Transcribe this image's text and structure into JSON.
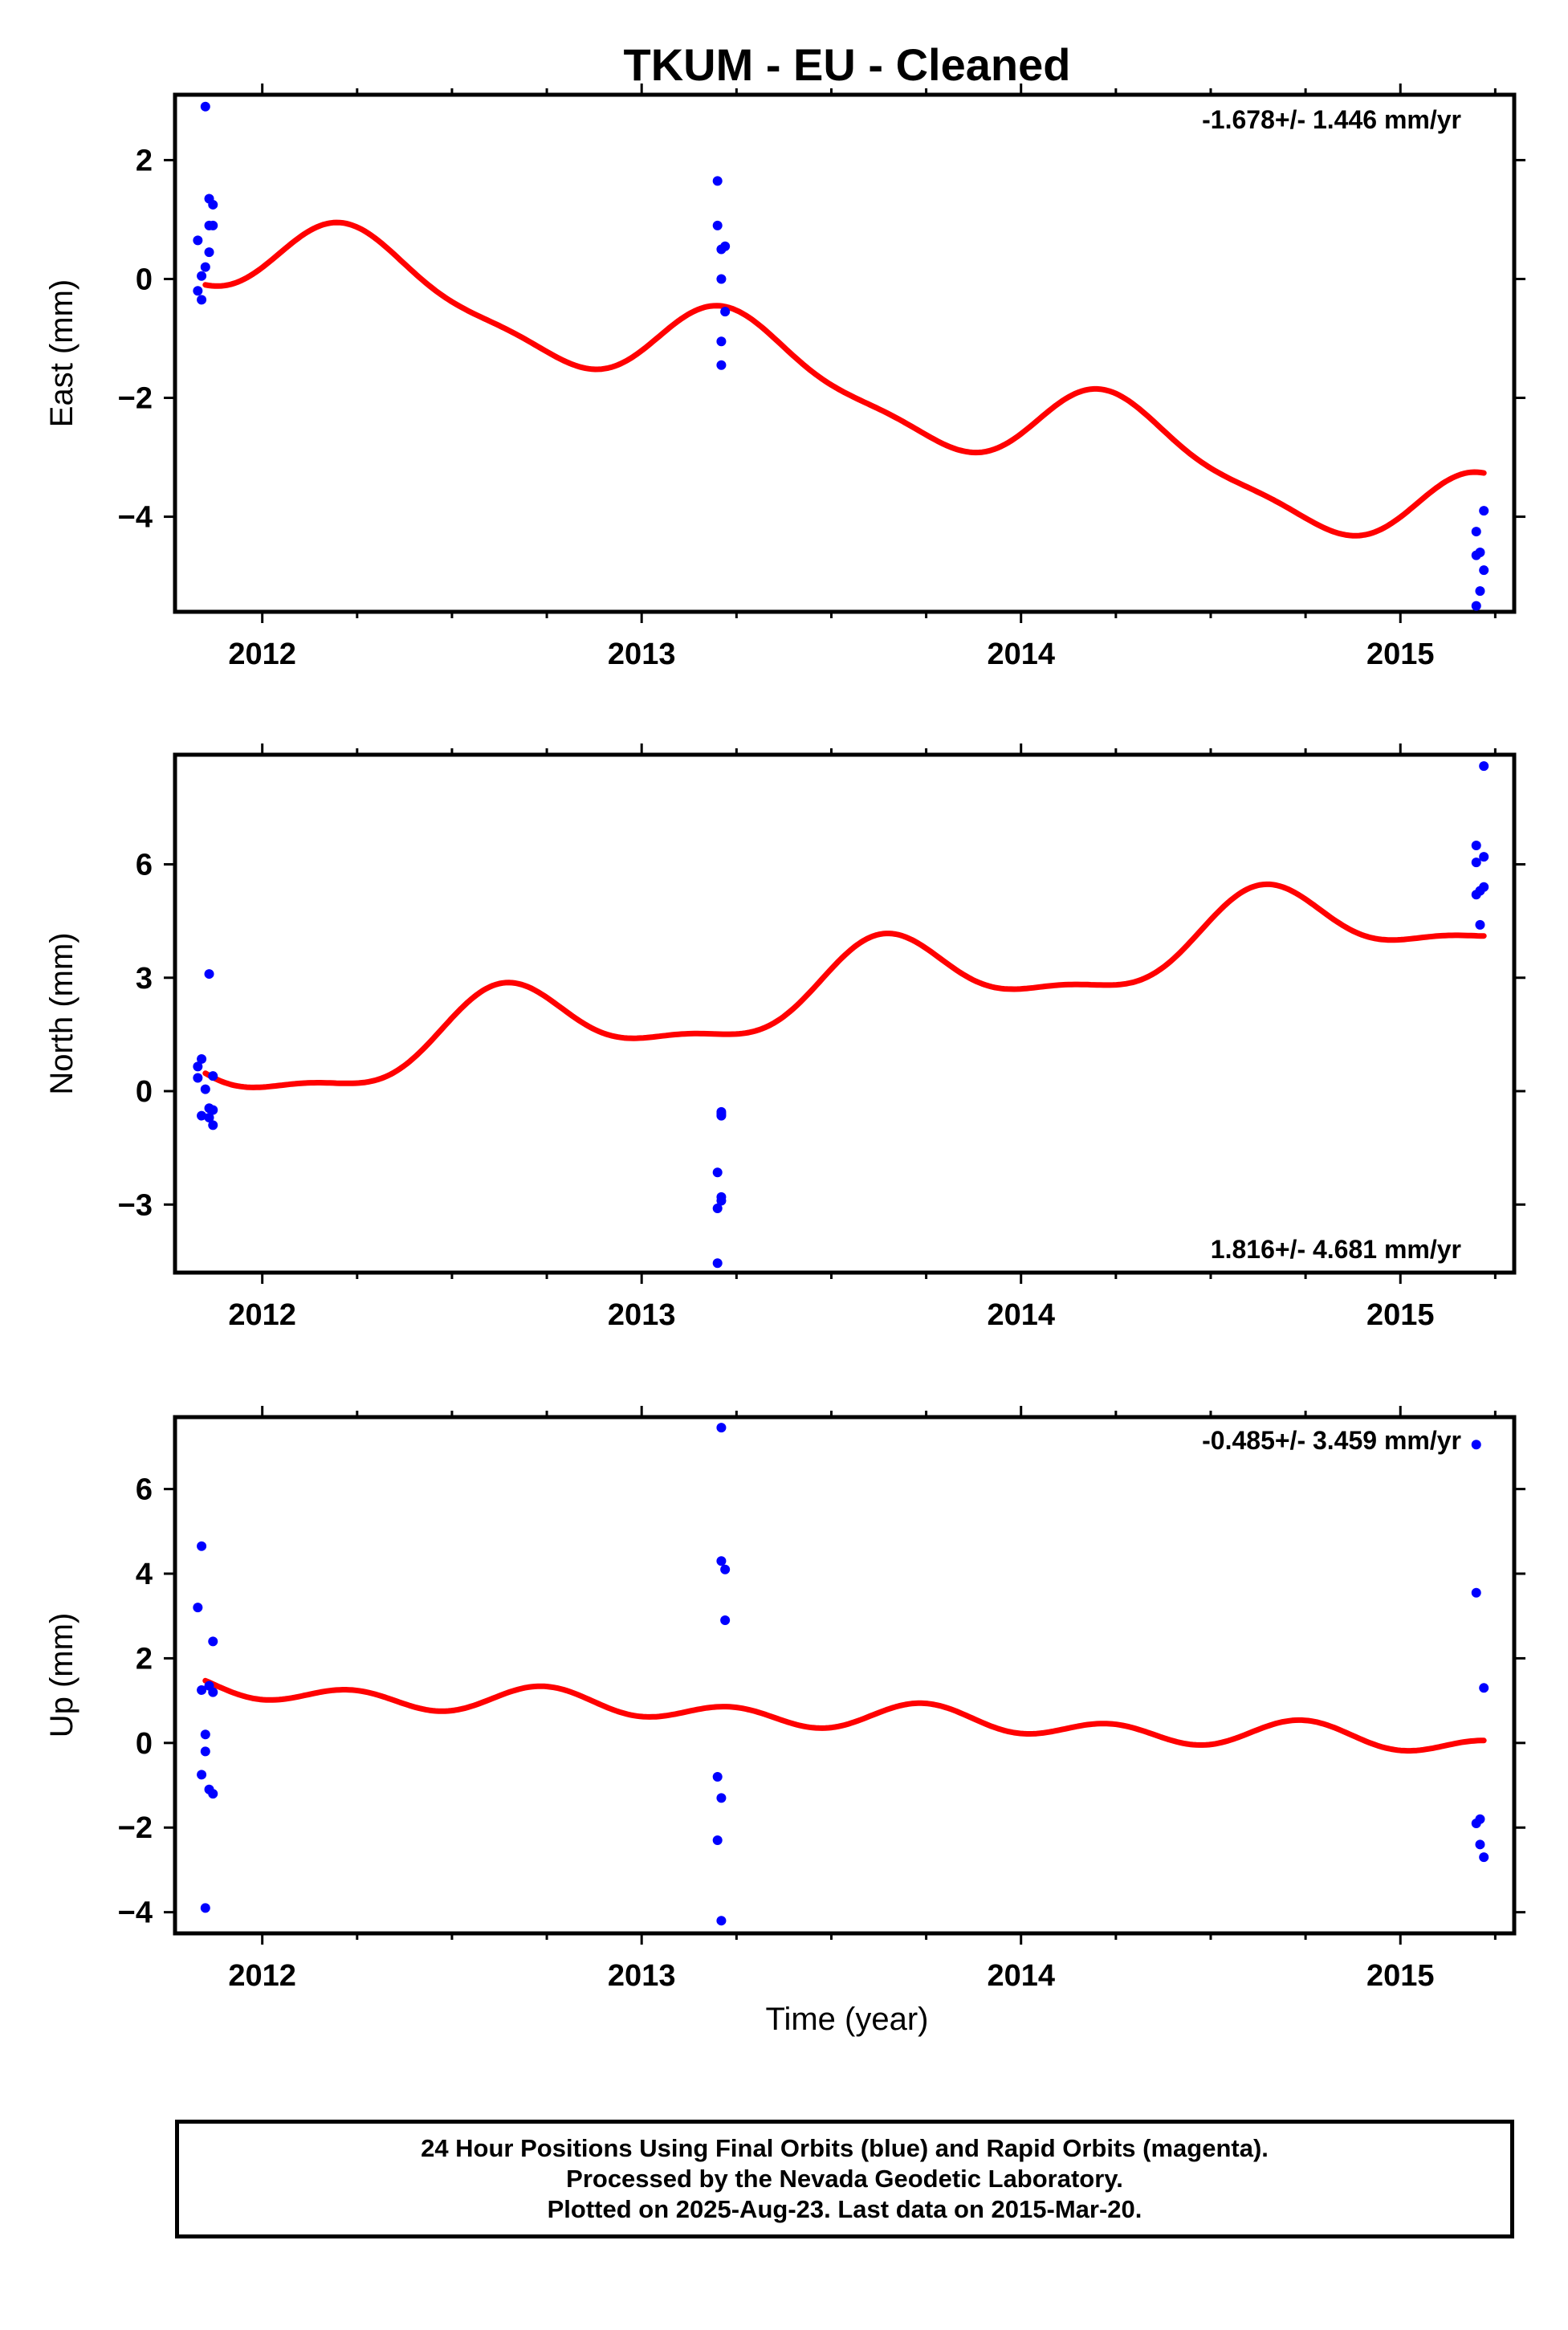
{
  "title": "TKUM  - EU - Cleaned",
  "xlabel": "Time (year)",
  "footer": {
    "line1": "24 Hour Positions Using Final Orbits (blue) and Rapid Orbits (magenta).",
    "line2": "Processed by the Nevada Geodetic Laboratory.",
    "line3": "Plotted on 2025-Aug-23. Last data on 2015-Mar-20."
  },
  "colors": {
    "points": "#0000ff",
    "fit": "#ff0000",
    "frame": "#000000"
  },
  "chart_data": [
    {
      "type": "scatter",
      "ylabel": "East (mm)",
      "rate_label": "-1.678+/- 1.446 mm/yr",
      "xlim": [
        2011.77,
        2015.3
      ],
      "ylim": [
        -5.6,
        3.1
      ],
      "xticks": [
        2012,
        2013,
        2014,
        2015
      ],
      "yticks": [
        -4,
        -2,
        0,
        2
      ],
      "fit_model": {
        "t0": 2011.85,
        "a": 0.6,
        "slope": -1.4,
        "annual_amp": 0.7,
        "annual_phase": -1.03,
        "semi_amp": 0.2,
        "semi_phase": 3.66
      },
      "points": [
        {
          "x": 2011.85,
          "y": 2.9
        },
        {
          "x": 2011.86,
          "y": 1.35
        },
        {
          "x": 2011.87,
          "y": 1.25
        },
        {
          "x": 2011.86,
          "y": 0.9
        },
        {
          "x": 2011.87,
          "y": 0.9
        },
        {
          "x": 2011.83,
          "y": 0.65
        },
        {
          "x": 2011.86,
          "y": 0.45
        },
        {
          "x": 2011.85,
          "y": 0.2
        },
        {
          "x": 2011.84,
          "y": 0.05
        },
        {
          "x": 2011.83,
          "y": -0.2
        },
        {
          "x": 2011.84,
          "y": -0.35
        },
        {
          "x": 2013.2,
          "y": 1.65
        },
        {
          "x": 2013.2,
          "y": 0.9
        },
        {
          "x": 2013.22,
          "y": 0.55
        },
        {
          "x": 2013.21,
          "y": 0.5
        },
        {
          "x": 2013.21,
          "y": 0.0
        },
        {
          "x": 2013.22,
          "y": -0.55
        },
        {
          "x": 2013.21,
          "y": -1.05
        },
        {
          "x": 2013.21,
          "y": -1.45
        },
        {
          "x": 2015.22,
          "y": -3.9
        },
        {
          "x": 2015.2,
          "y": -4.25
        },
        {
          "x": 2015.21,
          "y": -4.6
        },
        {
          "x": 2015.2,
          "y": -4.65
        },
        {
          "x": 2015.22,
          "y": -4.9
        },
        {
          "x": 2015.21,
          "y": -5.25
        },
        {
          "x": 2015.2,
          "y": -5.5
        }
      ]
    },
    {
      "type": "scatter",
      "ylabel": "North (mm)",
      "rate_label": "1.816+/- 4.681 mm/yr",
      "xlim": [
        2011.77,
        2015.3
      ],
      "ylim": [
        -4.8,
        8.9
      ],
      "xticks": [
        2012,
        2013,
        2014,
        2015
      ],
      "yticks": [
        -3,
        0,
        3,
        6
      ],
      "fit_model": {
        "t0": 2011.85,
        "a": 0.5,
        "slope": 1.3,
        "annual_amp": 1.0,
        "annual_phase": 2.83,
        "semi_amp": 0.35,
        "semi_phase": 4.4
      },
      "points": [
        {
          "x": 2011.86,
          "y": 3.1
        },
        {
          "x": 2011.84,
          "y": 0.85
        },
        {
          "x": 2011.83,
          "y": 0.65
        },
        {
          "x": 2011.87,
          "y": 0.4
        },
        {
          "x": 2011.83,
          "y": 0.35
        },
        {
          "x": 2011.85,
          "y": 0.05
        },
        {
          "x": 2011.86,
          "y": -0.45
        },
        {
          "x": 2011.87,
          "y": -0.5
        },
        {
          "x": 2011.84,
          "y": -0.65
        },
        {
          "x": 2011.86,
          "y": -0.7
        },
        {
          "x": 2011.87,
          "y": -0.9
        },
        {
          "x": 2013.21,
          "y": -0.55
        },
        {
          "x": 2013.21,
          "y": -0.6
        },
        {
          "x": 2013.21,
          "y": -0.65
        },
        {
          "x": 2013.2,
          "y": -2.15
        },
        {
          "x": 2013.21,
          "y": -2.8
        },
        {
          "x": 2013.21,
          "y": -2.9
        },
        {
          "x": 2013.2,
          "y": -3.1
        },
        {
          "x": 2013.2,
          "y": -4.55
        },
        {
          "x": 2015.22,
          "y": 8.6
        },
        {
          "x": 2015.2,
          "y": 6.5
        },
        {
          "x": 2015.22,
          "y": 6.2
        },
        {
          "x": 2015.2,
          "y": 6.05
        },
        {
          "x": 2015.22,
          "y": 5.4
        },
        {
          "x": 2015.21,
          "y": 5.3
        },
        {
          "x": 2015.2,
          "y": 5.2
        },
        {
          "x": 2015.21,
          "y": 4.4
        }
      ]
    },
    {
      "type": "scatter",
      "ylabel": "Up (mm)",
      "rate_label": "-0.485+/- 3.459 mm/yr",
      "xlim": [
        2011.77,
        2015.3
      ],
      "ylim": [
        -4.5,
        7.7
      ],
      "xticks": [
        2012,
        2013,
        2014,
        2015
      ],
      "yticks": [
        -4,
        -2,
        0,
        2,
        4,
        6
      ],
      "fit_model": {
        "t0": 2011.85,
        "a": 1.3,
        "slope": -0.4,
        "annual_amp": 0.15,
        "annual_phase": 2.0,
        "semi_amp": 0.25,
        "semi_phase": 3.0
      },
      "points": [
        {
          "x": 2011.84,
          "y": 4.65
        },
        {
          "x": 2011.83,
          "y": 3.2
        },
        {
          "x": 2011.87,
          "y": 2.4
        },
        {
          "x": 2011.86,
          "y": 1.35
        },
        {
          "x": 2011.84,
          "y": 1.25
        },
        {
          "x": 2011.87,
          "y": 1.2
        },
        {
          "x": 2011.85,
          "y": 0.2
        },
        {
          "x": 2011.85,
          "y": -0.2
        },
        {
          "x": 2011.84,
          "y": -0.75
        },
        {
          "x": 2011.86,
          "y": -1.1
        },
        {
          "x": 2011.87,
          "y": -1.2
        },
        {
          "x": 2011.85,
          "y": -3.9
        },
        {
          "x": 2013.21,
          "y": 7.45
        },
        {
          "x": 2013.21,
          "y": 4.3
        },
        {
          "x": 2013.22,
          "y": 4.1
        },
        {
          "x": 2013.22,
          "y": 2.9
        },
        {
          "x": 2013.2,
          "y": -0.8
        },
        {
          "x": 2013.21,
          "y": -1.3
        },
        {
          "x": 2013.2,
          "y": -2.3
        },
        {
          "x": 2013.21,
          "y": -4.2
        },
        {
          "x": 2015.2,
          "y": 7.05
        },
        {
          "x": 2015.2,
          "y": 3.55
        },
        {
          "x": 2015.22,
          "y": 1.3
        },
        {
          "x": 2015.21,
          "y": -1.8
        },
        {
          "x": 2015.2,
          "y": -1.9
        },
        {
          "x": 2015.21,
          "y": -2.4
        },
        {
          "x": 2015.22,
          "y": -2.7
        }
      ]
    }
  ]
}
